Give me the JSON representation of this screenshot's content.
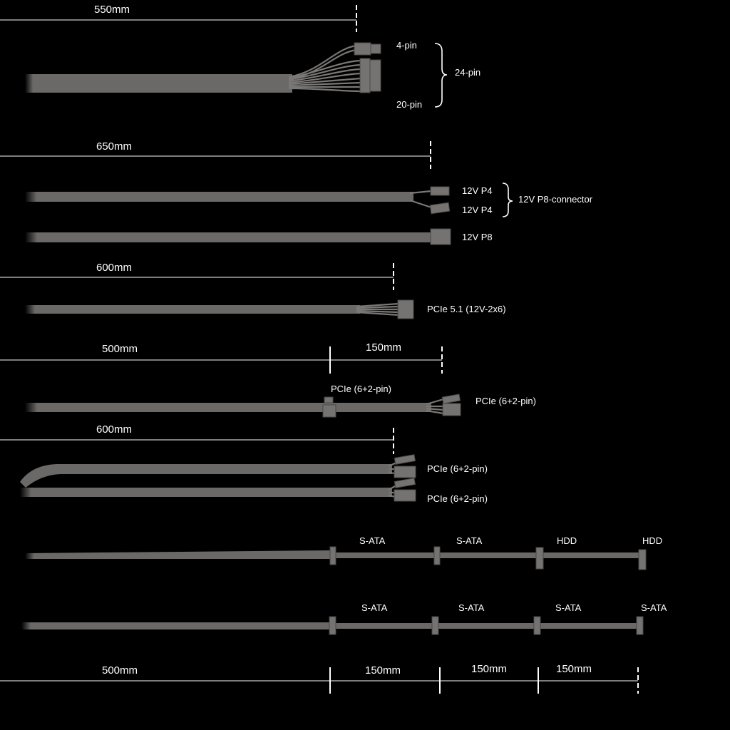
{
  "colors": {
    "background": "#000000",
    "cable": "#6b6967",
    "dimension_line": "#a8a8a8",
    "text": "#ffffff"
  },
  "cables": [
    {
      "length": "550mm",
      "labels": {
        "top": "4-pin",
        "bottom": "20-pin",
        "group": "24-pin"
      }
    },
    {
      "length": "650mm",
      "labels": {
        "p4a": "12V P4",
        "p4b": "12V P4",
        "group": "12V P8-connector",
        "p8": "12V P8"
      }
    },
    {
      "length": "600mm",
      "labels": {
        "main": "PCIe 5.1 (12V-2x6)"
      }
    },
    {
      "length": "500mm",
      "extra_length": "150mm",
      "labels": {
        "mid": "PCIe (6+2-pin)",
        "end": "PCIe (6+2-pin)"
      }
    },
    {
      "length": "600mm",
      "labels": {
        "a": "PCIe (6+2-pin)",
        "b": "PCIe (6+2-pin)"
      }
    },
    {
      "labels": [
        "S-ATA",
        "S-ATA",
        "HDD",
        "HDD"
      ]
    },
    {
      "labels": [
        "S-ATA",
        "S-ATA",
        "S-ATA",
        "S-ATA"
      ]
    },
    {
      "lengths": [
        "500mm",
        "150mm",
        "150mm",
        "150mm"
      ]
    }
  ]
}
